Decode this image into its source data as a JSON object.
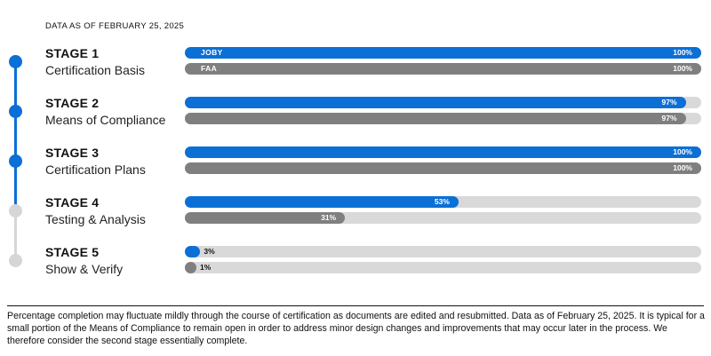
{
  "date_note": "DATA AS OF FEBRUARY 25, 2025",
  "colors": {
    "joby": "#0b6fd6",
    "faa": "#7f7f80",
    "track": "#d9d9d9",
    "stage_complete": "#0b6fd6",
    "stage_pending": "#d6d6d6"
  },
  "chart_data": {
    "type": "bar",
    "orientation": "horizontal",
    "xlim": [
      0,
      100
    ],
    "value_unit": "%",
    "series_names": [
      "JOBY",
      "FAA"
    ],
    "stages": [
      {
        "title": "STAGE 1",
        "subtitle": "Certification Basis",
        "complete": true,
        "bars": [
          {
            "series": "JOBY",
            "value": 100,
            "label": "100%"
          },
          {
            "series": "FAA",
            "value": 100,
            "label": "100%"
          }
        ]
      },
      {
        "title": "STAGE 2",
        "subtitle": "Means of Compliance",
        "complete": true,
        "bars": [
          {
            "series": "JOBY",
            "value": 97,
            "label": "97%"
          },
          {
            "series": "FAA",
            "value": 97,
            "label": "97%"
          }
        ]
      },
      {
        "title": "STAGE 3",
        "subtitle": "Certification Plans",
        "complete": true,
        "bars": [
          {
            "series": "JOBY",
            "value": 100,
            "label": "100%"
          },
          {
            "series": "FAA",
            "value": 100,
            "label": "100%"
          }
        ]
      },
      {
        "title": "STAGE 4",
        "subtitle": "Testing & Analysis",
        "complete": false,
        "bars": [
          {
            "series": "JOBY",
            "value": 53,
            "label": "53%"
          },
          {
            "series": "FAA",
            "value": 31,
            "label": "31%"
          }
        ]
      },
      {
        "title": "STAGE 5",
        "subtitle": "Show & Verify",
        "complete": false,
        "bars": [
          {
            "series": "JOBY",
            "value": 3,
            "label": "3%"
          },
          {
            "series": "FAA",
            "value": 1,
            "label": "1%"
          }
        ]
      }
    ]
  },
  "footnote": "Percentage completion may fluctuate mildly through the course of certification as documents are edited and resubmitted. Data as of February 25, 2025. It is typical for a small portion of the Means of Compliance to remain open in order to address minor design changes and improvements that may occur later in the process. We therefore consider the second stage essentially complete."
}
